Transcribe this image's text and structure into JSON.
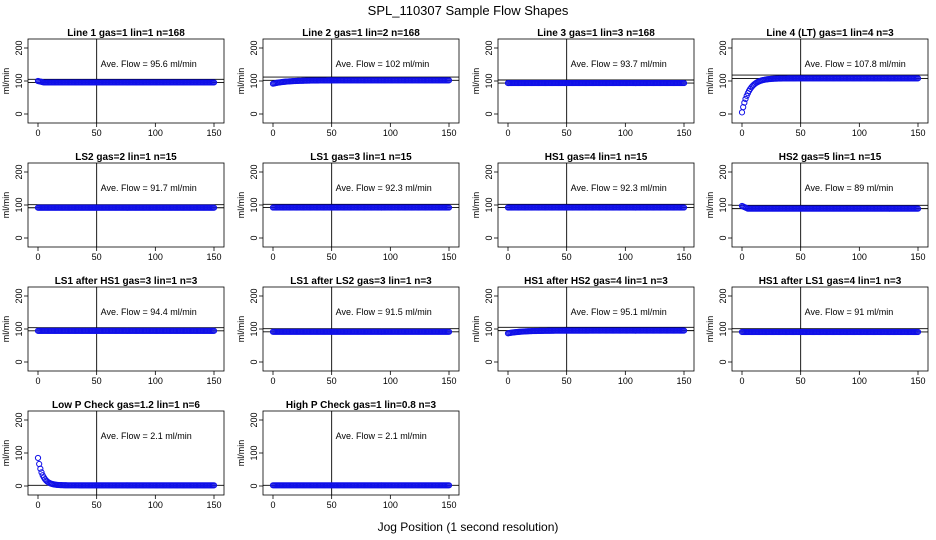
{
  "figure": {
    "title": "SPL_110307  Sample Flow Shapes",
    "xlabel": "Jog Position (1 second resolution)",
    "ylabel": "ml/min"
  },
  "chart_data": [
    {
      "type": "scatter",
      "title": "Line 1 gas=1 lin=1 n=168",
      "annotation": "Ave. Flow =  95.6  ml/min",
      "shape": "flat",
      "avg": 95.6,
      "hlines": [
        95.6,
        105
      ],
      "vline": 50,
      "xlim": [
        0,
        150
      ],
      "ylim": [
        0,
        200
      ],
      "xticks": [
        0,
        50,
        100,
        150
      ],
      "yticks": [
        0,
        100,
        200
      ],
      "x_end": 150,
      "y_start": 100,
      "y_final": 95.6
    },
    {
      "type": "scatter",
      "title": "Line 2 gas=1 lin=2 n=168",
      "annotation": "Ave. Flow =  102  ml/min",
      "shape": "rise_slow",
      "avg": 102,
      "hlines": [
        102,
        112
      ],
      "vline": 50,
      "xlim": [
        0,
        150
      ],
      "ylim": [
        0,
        200
      ],
      "xticks": [
        0,
        50,
        100,
        150
      ],
      "yticks": [
        0,
        100,
        200
      ],
      "x_end": 150,
      "y_start": 92,
      "y_final": 102
    },
    {
      "type": "scatter",
      "title": "Line 3 gas=1 lin=3 n=168",
      "annotation": "Ave. Flow =  93.7  ml/min",
      "shape": "flat",
      "avg": 93.7,
      "hlines": [
        93.7,
        103
      ],
      "vline": 50,
      "xlim": [
        0,
        150
      ],
      "ylim": [
        0,
        200
      ],
      "xticks": [
        0,
        50,
        100,
        150
      ],
      "yticks": [
        0,
        100,
        200
      ],
      "x_end": 150,
      "y_start": 93.7,
      "y_final": 93.7
    },
    {
      "type": "scatter",
      "title": "Line 4 (LT) gas=1 lin=4 n=3",
      "annotation": "Ave. Flow =  107.8  ml/min",
      "shape": "rise_exp",
      "avg": 107.8,
      "hlines": [
        107.8,
        118
      ],
      "vline": 50,
      "xlim": [
        0,
        150
      ],
      "ylim": [
        0,
        200
      ],
      "xticks": [
        0,
        50,
        100,
        150
      ],
      "yticks": [
        0,
        100,
        200
      ],
      "x_end": 150,
      "y_start": 5,
      "y_final": 108
    },
    {
      "type": "scatter",
      "title": "LS2 gas=2 lin=1 n=15",
      "annotation": "Ave. Flow =  91.7  ml/min",
      "shape": "flat",
      "avg": 91.7,
      "hlines": [
        91.7,
        101
      ],
      "vline": 50,
      "xlim": [
        0,
        150
      ],
      "ylim": [
        0,
        200
      ],
      "xticks": [
        0,
        50,
        100,
        150
      ],
      "yticks": [
        0,
        100,
        200
      ],
      "x_end": 150,
      "y_start": 91.7,
      "y_final": 91.7
    },
    {
      "type": "scatter",
      "title": "LS1 gas=3 lin=1 n=15",
      "annotation": "Ave. Flow =  92.3  ml/min",
      "shape": "flat",
      "avg": 92.3,
      "hlines": [
        92.3,
        102
      ],
      "vline": 50,
      "xlim": [
        0,
        150
      ],
      "ylim": [
        0,
        200
      ],
      "xticks": [
        0,
        50,
        100,
        150
      ],
      "yticks": [
        0,
        100,
        200
      ],
      "x_end": 150,
      "y_start": 92.3,
      "y_final": 92.3
    },
    {
      "type": "scatter",
      "title": "HS1 gas=4 lin=1 n=15",
      "annotation": "Ave. Flow =  92.3  ml/min",
      "shape": "flat",
      "avg": 92.3,
      "hlines": [
        92.3,
        102
      ],
      "vline": 50,
      "xlim": [
        0,
        150
      ],
      "ylim": [
        0,
        200
      ],
      "xticks": [
        0,
        50,
        100,
        150
      ],
      "yticks": [
        0,
        100,
        200
      ],
      "x_end": 150,
      "y_start": 92.3,
      "y_final": 92.3
    },
    {
      "type": "scatter",
      "title": "HS2 gas=5 lin=1 n=15",
      "annotation": "Ave. Flow =  89  ml/min",
      "shape": "flat",
      "avg": 89,
      "hlines": [
        89,
        99
      ],
      "vline": 50,
      "xlim": [
        0,
        150
      ],
      "ylim": [
        0,
        200
      ],
      "xticks": [
        0,
        50,
        100,
        150
      ],
      "yticks": [
        0,
        100,
        200
      ],
      "x_end": 150,
      "y_start": 97,
      "y_final": 89
    },
    {
      "type": "scatter",
      "title": "LS1 after HS1 gas=3 lin=1 n=3",
      "annotation": "Ave. Flow =  94.4  ml/min",
      "shape": "flat",
      "avg": 94.4,
      "hlines": [
        94.4,
        104
      ],
      "vline": 50,
      "xlim": [
        0,
        150
      ],
      "ylim": [
        0,
        200
      ],
      "xticks": [
        0,
        50,
        100,
        150
      ],
      "yticks": [
        0,
        100,
        200
      ],
      "x_end": 150,
      "y_start": 94.4,
      "y_final": 94.4
    },
    {
      "type": "scatter",
      "title": "LS1 after LS2 gas=3 lin=1 n=3",
      "annotation": "Ave. Flow =  91.5  ml/min",
      "shape": "flat",
      "avg": 91.5,
      "hlines": [
        91.5,
        101
      ],
      "vline": 50,
      "xlim": [
        0,
        150
      ],
      "ylim": [
        0,
        200
      ],
      "xticks": [
        0,
        50,
        100,
        150
      ],
      "yticks": [
        0,
        100,
        200
      ],
      "x_end": 150,
      "y_start": 91.5,
      "y_final": 91.5
    },
    {
      "type": "scatter",
      "title": "HS1 after HS2 gas=4 lin=1 n=3",
      "annotation": "Ave. Flow =  95.1  ml/min",
      "shape": "rise_slow",
      "avg": 95.1,
      "hlines": [
        95.1,
        105
      ],
      "vline": 50,
      "xlim": [
        0,
        150
      ],
      "ylim": [
        0,
        200
      ],
      "xticks": [
        0,
        50,
        100,
        150
      ],
      "yticks": [
        0,
        100,
        200
      ],
      "x_end": 150,
      "y_start": 87,
      "y_final": 95.1
    },
    {
      "type": "scatter",
      "title": "HS1 after LS1 gas=4 lin=1 n=3",
      "annotation": "Ave. Flow =  91  ml/min",
      "shape": "flat",
      "avg": 91,
      "hlines": [
        91,
        101
      ],
      "vline": 50,
      "xlim": [
        0,
        150
      ],
      "ylim": [
        0,
        200
      ],
      "xticks": [
        0,
        50,
        100,
        150
      ],
      "yticks": [
        0,
        100,
        200
      ],
      "x_end": 150,
      "y_start": 91,
      "y_final": 91
    },
    {
      "type": "scatter",
      "title": "Low P Check gas=1.2 lin=1 n=6",
      "annotation": "Ave. Flow =  2.1  ml/min",
      "shape": "decay",
      "avg": 2.1,
      "hlines": [
        2.1
      ],
      "vline": 50,
      "xlim": [
        0,
        150
      ],
      "ylim": [
        0,
        200
      ],
      "xticks": [
        0,
        50,
        100,
        150
      ],
      "yticks": [
        0,
        100,
        200
      ],
      "x_end": 150,
      "y_start": 85,
      "y_final": 2
    },
    {
      "type": "scatter",
      "title": "High P Check gas=1 lin=0.8 n=3",
      "annotation": "Ave. Flow =  2.1  ml/min",
      "shape": "flat",
      "avg": 2.1,
      "hlines": [
        2.1
      ],
      "vline": 50,
      "xlim": [
        0,
        150
      ],
      "ylim": [
        0,
        200
      ],
      "xticks": [
        0,
        50,
        100,
        150
      ],
      "yticks": [
        0,
        100,
        200
      ],
      "x_end": 150,
      "y_start": 2.1,
      "y_final": 2.1
    }
  ]
}
